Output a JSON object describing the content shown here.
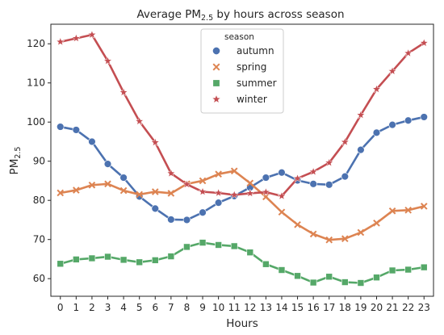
{
  "chart_data": {
    "type": "line",
    "title_main": "Average PM",
    "title_sub": "2.5",
    "title_tail": " by hours across season",
    "xlabel": "Hours",
    "ylabel_main": "PM",
    "ylabel_sub": "2.5",
    "x": [
      0,
      1,
      2,
      3,
      4,
      5,
      6,
      7,
      8,
      9,
      10,
      11,
      12,
      13,
      14,
      15,
      16,
      17,
      18,
      19,
      20,
      21,
      22,
      23
    ],
    "xticks": [
      "0",
      "1",
      "2",
      "3",
      "4",
      "5",
      "6",
      "7",
      "8",
      "9",
      "10",
      "11",
      "12",
      "13",
      "14",
      "15",
      "16",
      "17",
      "18",
      "19",
      "20",
      "21",
      "22",
      "23"
    ],
    "yticks": [
      "60",
      "70",
      "80",
      "90",
      "100",
      "110",
      "120"
    ],
    "ylim": [
      55.5,
      125
    ],
    "xlim": [
      -0.6,
      23.6
    ],
    "grid": false,
    "legend": {
      "title": "season",
      "placement": "top-center"
    },
    "series": [
      {
        "name": "autumn",
        "marker": "circle",
        "color": "#4c72b0",
        "values": [
          98.8,
          98.0,
          95.0,
          89.3,
          85.8,
          81.0,
          77.9,
          75.1,
          75.0,
          76.9,
          79.4,
          81.1,
          83.3,
          85.8,
          87.1,
          85.1,
          84.2,
          84.0,
          86.1,
          92.9,
          97.3,
          99.3,
          100.4,
          101.3
        ]
      },
      {
        "name": "spring",
        "marker": "x",
        "color": "#dd8452",
        "values": [
          81.9,
          82.6,
          83.9,
          84.2,
          82.5,
          81.5,
          82.2,
          81.8,
          84.2,
          85.0,
          86.7,
          87.5,
          84.4,
          80.9,
          77.0,
          73.8,
          71.4,
          69.9,
          70.2,
          71.8,
          74.2,
          77.3,
          77.5,
          78.5
        ]
      },
      {
        "name": "summer",
        "marker": "square",
        "color": "#55a868",
        "values": [
          63.8,
          64.9,
          65.2,
          65.6,
          64.8,
          64.2,
          64.7,
          65.7,
          68.1,
          69.2,
          68.6,
          68.3,
          66.7,
          63.7,
          62.2,
          60.7,
          59.0,
          60.5,
          59.1,
          58.9,
          60.3,
          62.1,
          62.3,
          62.9
        ]
      },
      {
        "name": "winter",
        "marker": "star",
        "color": "#c44e52",
        "values": [
          120.5,
          121.4,
          122.3,
          115.6,
          107.6,
          100.2,
          94.8,
          86.9,
          84.1,
          82.2,
          81.9,
          81.4,
          81.8,
          82.1,
          81.1,
          85.6,
          87.3,
          89.6,
          94.9,
          101.8,
          108.4,
          113.0,
          117.6,
          120.2
        ]
      }
    ]
  }
}
